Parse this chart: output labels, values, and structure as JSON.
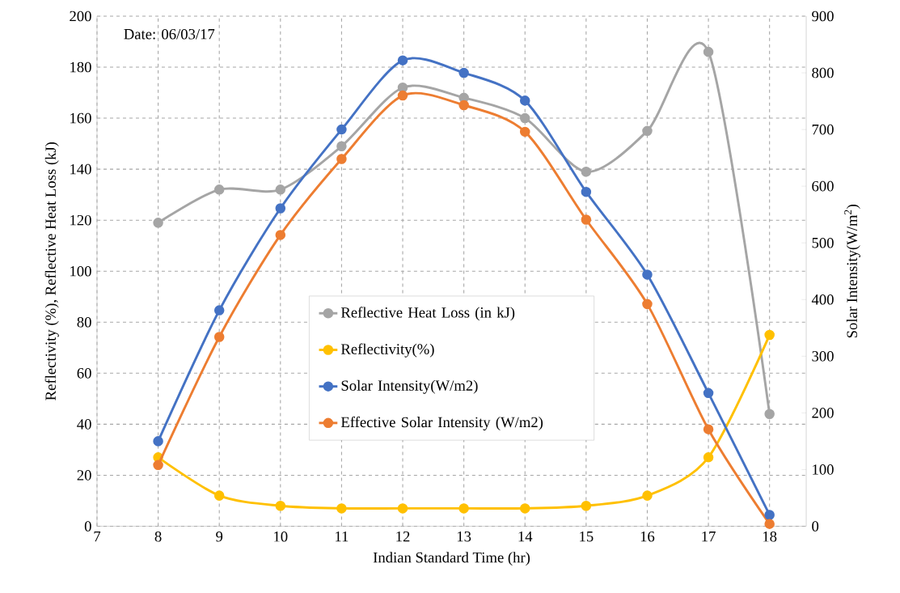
{
  "chart_data": {
    "type": "line",
    "xlabel": "Indian Standard Time (hr)",
    "ylabel": "Reflectivity (%), Reflective Heat Loss (kJ)",
    "y2label": "Solar Intensity(W/m$^{2}$)",
    "annotations": [
      "Date: 06/03/17"
    ],
    "x": [
      8,
      9,
      10,
      11,
      12,
      13,
      14,
      15,
      16,
      17,
      18
    ],
    "series": [
      {
        "name": "Reflective Heat Loss (in kJ)",
        "color": "#a5a5a5",
        "values": [
          119,
          132,
          132,
          149,
          172,
          168,
          160,
          139,
          155,
          186,
          44
        ]
      },
      {
        "name": "Reflectivity(%)",
        "color": "#ffc000",
        "values": [
          27,
          12,
          8,
          7,
          7,
          7,
          7,
          8,
          12,
          27,
          75
        ]
      },
      {
        "name": "Solar Intensity(W/m2)",
        "color": "#4472c4",
        "axis": "y2",
        "values": [
          150,
          381,
          561,
          700,
          822,
          800,
          751,
          590,
          444,
          235,
          20
        ]
      },
      {
        "name": "Effective Solar Intensity (W/m2)",
        "color": "#ed7d31",
        "axis": "y2",
        "values": [
          108,
          334,
          514,
          648,
          760,
          743,
          696,
          541,
          392,
          171,
          4
        ]
      }
    ],
    "xlim": [
      7,
      18.6
    ],
    "xticks": [
      7,
      8,
      9,
      10,
      11,
      12,
      13,
      14,
      15,
      16,
      17,
      18
    ],
    "ylim": [
      0,
      200
    ],
    "yticks": [
      0,
      20,
      40,
      60,
      80,
      100,
      120,
      140,
      160,
      180,
      200
    ],
    "y2lim": [
      0,
      900
    ],
    "y2ticks": [
      0,
      100,
      200,
      300,
      400,
      500,
      600,
      700,
      800,
      900
    ],
    "grid": true,
    "legend": "center",
    "marker": "circle",
    "line_style": "solid"
  }
}
